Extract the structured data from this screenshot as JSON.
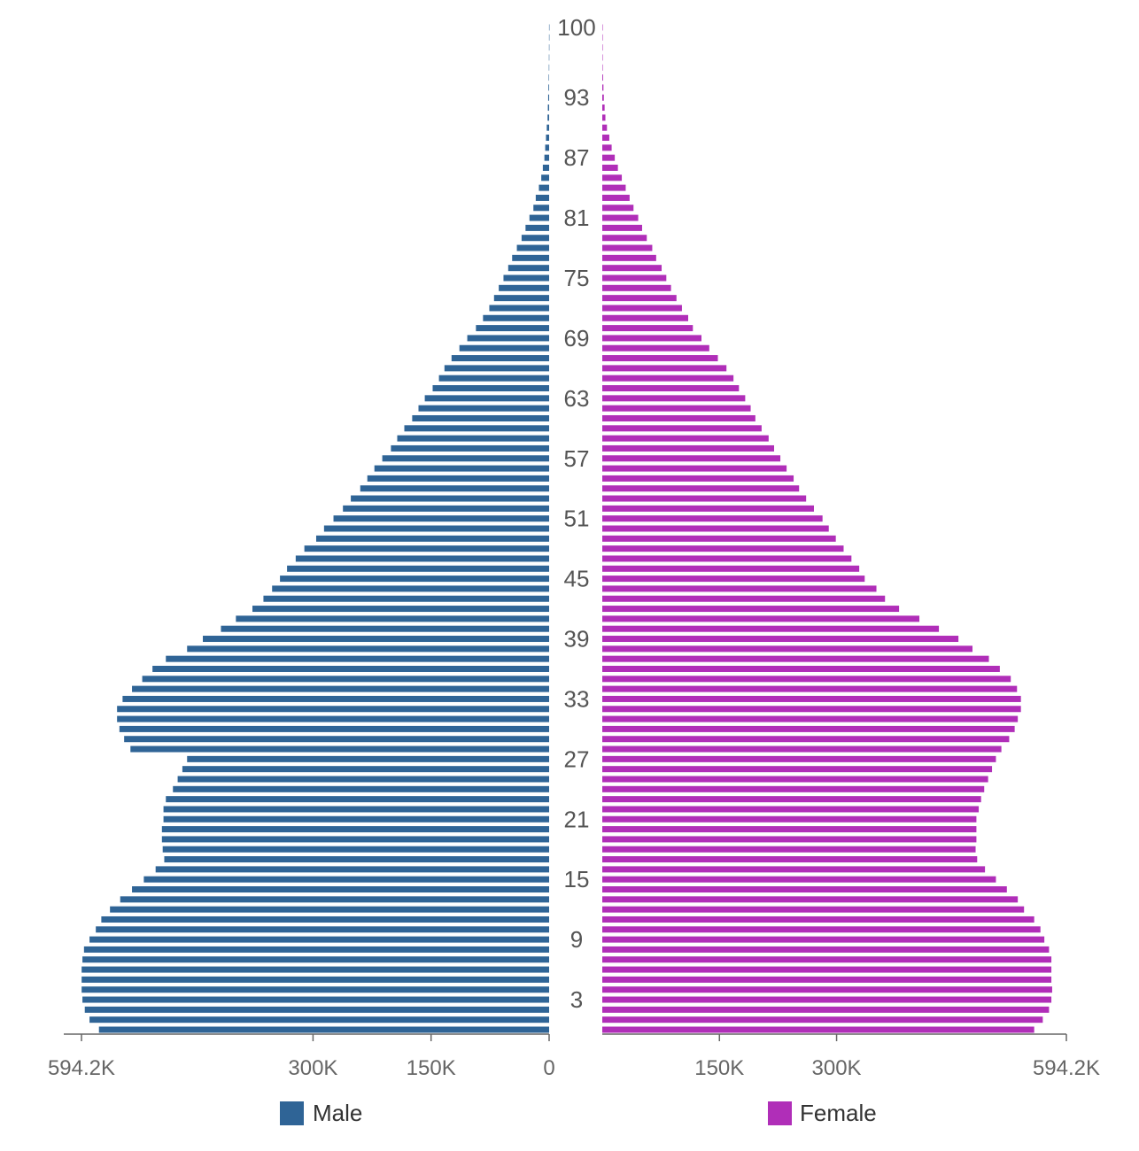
{
  "chart_data": {
    "type": "bar",
    "orientation": "horizontal-pyramid",
    "categories_label": "age",
    "ages": [
      0,
      1,
      2,
      3,
      4,
      5,
      6,
      7,
      8,
      9,
      10,
      11,
      12,
      13,
      14,
      15,
      16,
      17,
      18,
      19,
      20,
      21,
      22,
      23,
      24,
      25,
      26,
      27,
      28,
      29,
      30,
      31,
      32,
      33,
      34,
      35,
      36,
      37,
      38,
      39,
      40,
      41,
      42,
      43,
      44,
      45,
      46,
      47,
      48,
      49,
      50,
      51,
      52,
      53,
      54,
      55,
      56,
      57,
      58,
      59,
      60,
      61,
      62,
      63,
      64,
      65,
      66,
      67,
      68,
      69,
      70,
      71,
      72,
      73,
      74,
      75,
      76,
      77,
      78,
      79,
      80,
      81,
      82,
      83,
      84,
      85,
      86,
      87,
      88,
      89,
      90,
      91,
      92,
      93,
      94,
      95,
      96,
      97,
      98,
      99,
      100
    ],
    "age_labels": [
      "3",
      "9",
      "15",
      "21",
      "27",
      "33",
      "39",
      "45",
      "51",
      "57",
      "63",
      "69",
      "75",
      "81",
      "87",
      "93",
      "100"
    ],
    "x_ticks_left": [
      "594.2K",
      "300K",
      "150K",
      "0"
    ],
    "x_ticks_right": [
      "150K",
      "300K",
      "594.2K"
    ],
    "x_max": 594200,
    "colors": {
      "male": "#2f6496",
      "female": "#b02eb8"
    },
    "series": [
      {
        "name": "Male",
        "values": [
          572000,
          584000,
          590000,
          593000,
          594000,
          594000,
          594000,
          593000,
          591000,
          584000,
          576000,
          569000,
          558000,
          545000,
          530000,
          515000,
          500000,
          489000,
          491000,
          492000,
          492000,
          490000,
          490000,
          487000,
          478000,
          472000,
          466000,
          460000,
          532000,
          540000,
          546000,
          549000,
          549000,
          542000,
          530000,
          517000,
          504000,
          487000,
          460000,
          440000,
          417000,
          398000,
          377000,
          363000,
          352000,
          342000,
          333000,
          322000,
          311000,
          296000,
          286000,
          274000,
          262000,
          252000,
          240000,
          231000,
          222000,
          212000,
          201000,
          193000,
          184000,
          174000,
          166000,
          158000,
          148000,
          140000,
          133000,
          124000,
          114000,
          104000,
          93000,
          84000,
          76000,
          70000,
          64000,
          58000,
          52000,
          47000,
          41000,
          35000,
          30000,
          25000,
          20000,
          17000,
          13000,
          10000,
          8000,
          6000,
          5000,
          4000,
          3000,
          2000,
          1600,
          1200,
          900,
          600,
          400,
          300,
          200,
          150,
          100
        ]
      },
      {
        "name": "Female",
        "values": [
          553000,
          564000,
          572000,
          575000,
          576000,
          575000,
          575000,
          575000,
          572000,
          566000,
          561000,
          553000,
          540000,
          532000,
          518000,
          504000,
          490000,
          480000,
          478000,
          479000,
          479000,
          479000,
          482000,
          485000,
          489000,
          494000,
          499000,
          504000,
          511000,
          521000,
          528000,
          532000,
          536000,
          536000,
          531000,
          523000,
          509000,
          495000,
          474000,
          456000,
          431000,
          406000,
          380000,
          362000,
          351000,
          336000,
          329000,
          319000,
          309000,
          299000,
          290000,
          282000,
          271000,
          261000,
          252000,
          245000,
          236000,
          228000,
          220000,
          213000,
          204000,
          196000,
          190000,
          183000,
          175000,
          168000,
          159000,
          148000,
          137000,
          127000,
          116000,
          110000,
          102000,
          95000,
          88000,
          82000,
          76000,
          69000,
          64000,
          57000,
          51000,
          46000,
          40000,
          35000,
          30000,
          25000,
          20000,
          16000,
          12000,
          9000,
          6000,
          4000,
          3000,
          2000,
          1500,
          1000,
          600,
          400,
          300,
          200,
          100
        ]
      }
    ],
    "legend_placement": "bottom",
    "grid": false
  }
}
